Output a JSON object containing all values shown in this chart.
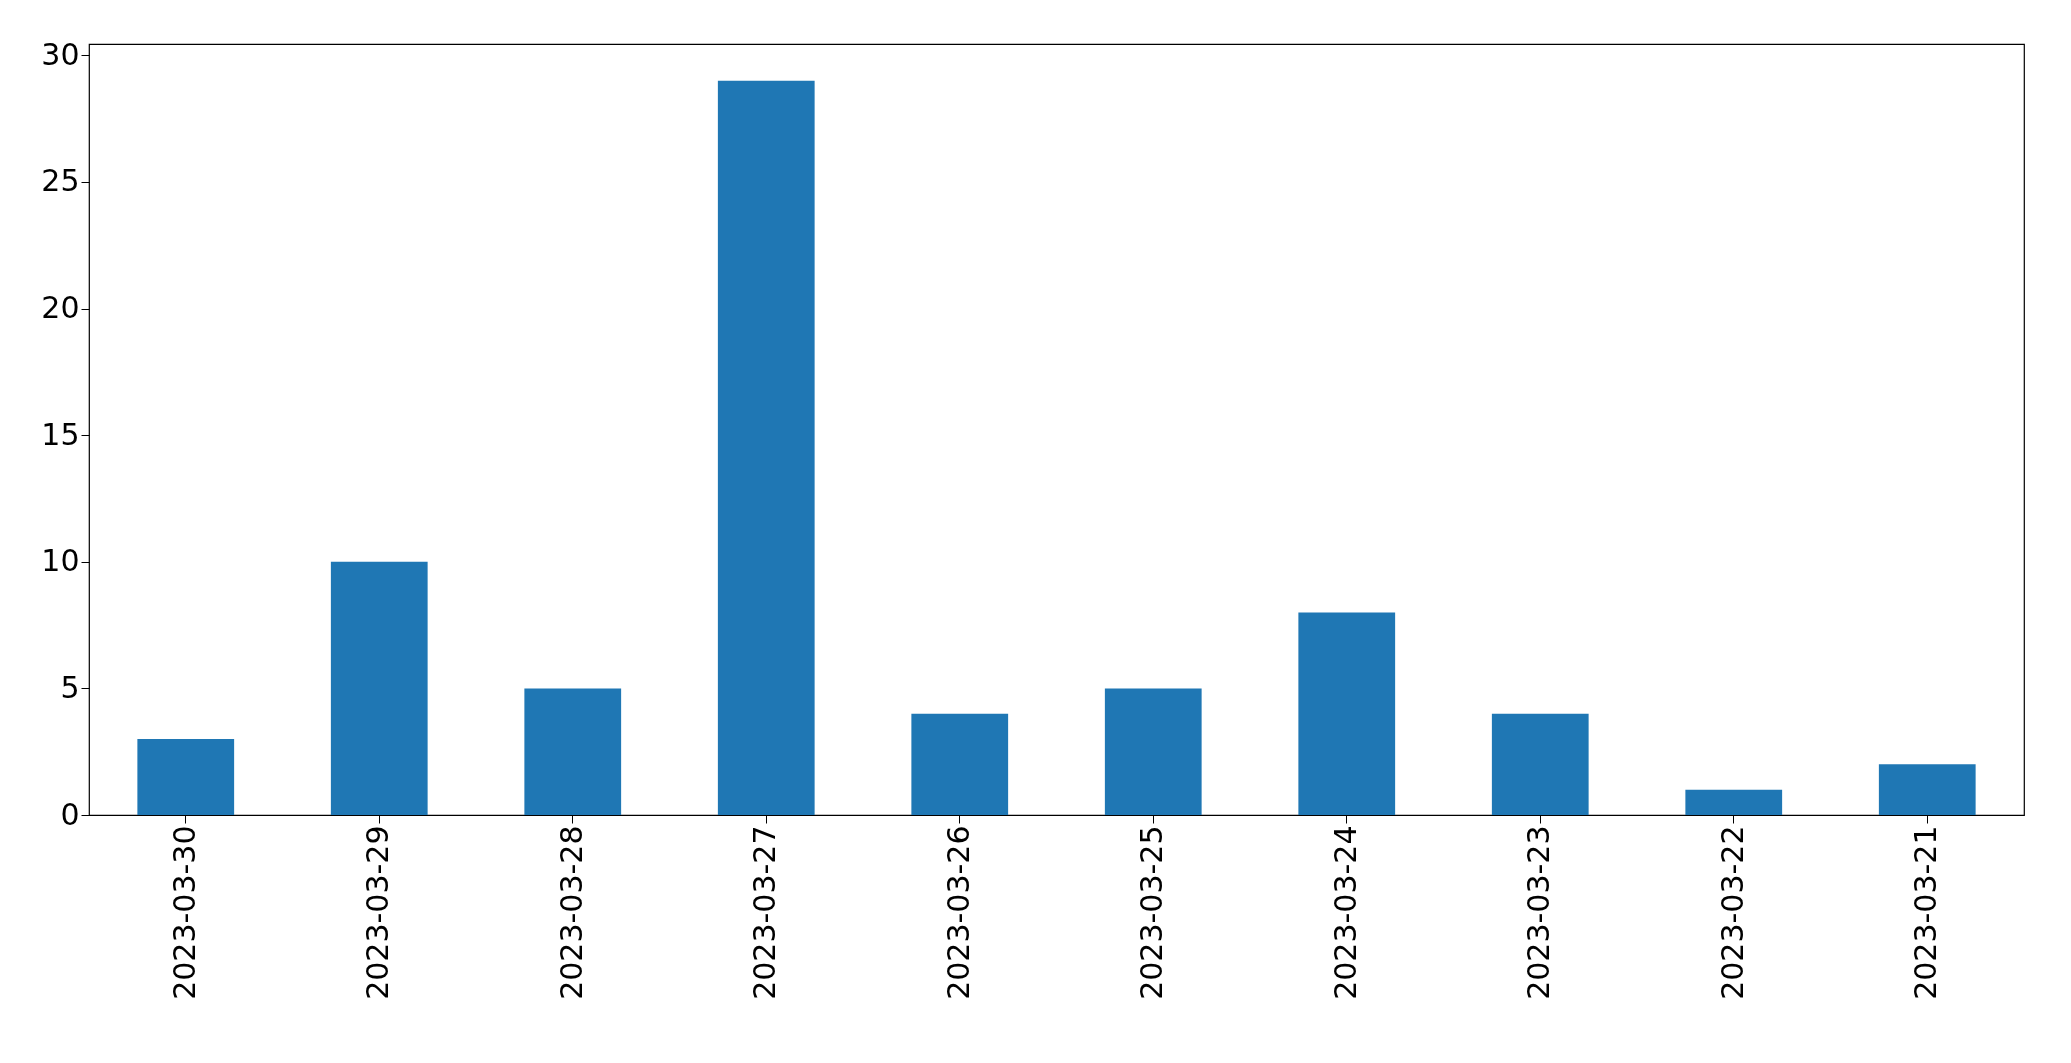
{
  "chart_data": {
    "type": "bar",
    "categories": [
      "2023-03-30",
      "2023-03-29",
      "2023-03-28",
      "2023-03-27",
      "2023-03-26",
      "2023-03-25",
      "2023-03-24",
      "2023-03-23",
      "2023-03-22",
      "2023-03-21"
    ],
    "values": [
      3,
      10,
      5,
      29,
      4,
      5,
      8,
      4,
      1,
      2
    ],
    "color": "#1f77b4",
    "ylim": [
      0,
      30.45
    ],
    "yticks": [
      0,
      5,
      10,
      15,
      20,
      25,
      30
    ],
    "grid": false
  }
}
